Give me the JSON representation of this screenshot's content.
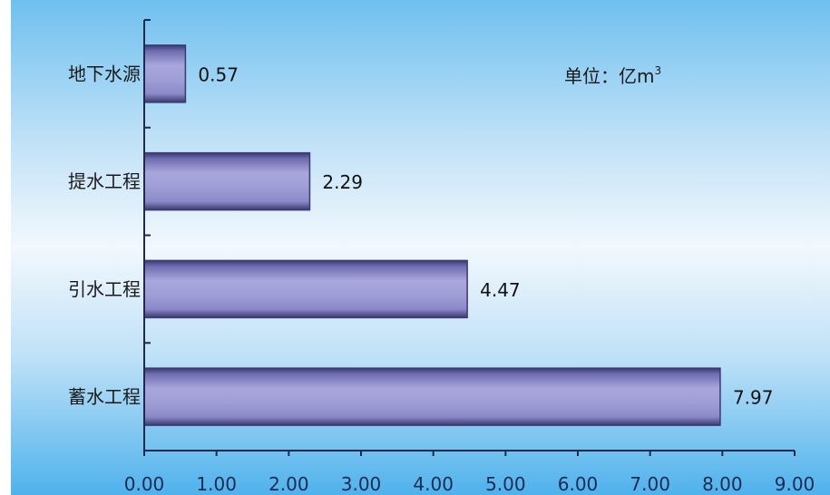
{
  "chart_data": {
    "type": "bar",
    "orientation": "horizontal",
    "categories": [
      "地下水源",
      "提水工程",
      "引水工程",
      "蓄水工程"
    ],
    "values": [
      0.57,
      2.29,
      4.47,
      7.97
    ],
    "value_labels": [
      "0.57",
      "2.29",
      "4.47",
      "7.97"
    ],
    "title": "",
    "unit": {
      "prefix": "单位：亿m",
      "sup": "3"
    },
    "xlim": [
      0,
      9
    ],
    "xticks": [
      "0.00",
      "1.00",
      "2.00",
      "3.00",
      "4.00",
      "5.00",
      "6.00",
      "7.00",
      "8.00",
      "9.00"
    ],
    "grid": false,
    "colors": {
      "bar_light": "#a8a6dc",
      "bar_mid": "#8c89c9",
      "bar_dark": "#3a3970",
      "bg_top": "#6fc0ef",
      "bg_mid": "#f2f8fd",
      "bg_bottom": "#4fb2ec",
      "axis": "#1f2a4a"
    }
  }
}
